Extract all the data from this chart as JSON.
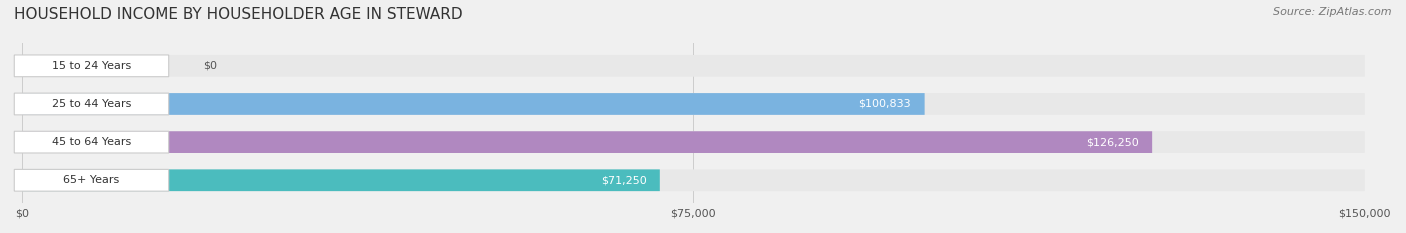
{
  "title": "HOUSEHOLD INCOME BY HOUSEHOLDER AGE IN STEWARD",
  "source": "Source: ZipAtlas.com",
  "categories": [
    "15 to 24 Years",
    "25 to 44 Years",
    "45 to 64 Years",
    "65+ Years"
  ],
  "values": [
    0,
    100833,
    126250,
    71250
  ],
  "bar_colors": [
    "#f4a0a0",
    "#7ab3e0",
    "#b088c0",
    "#4bbcbe"
  ],
  "background_color": "#f0f0f0",
  "bar_bg_color": "#e8e8e8",
  "label_bg_color": "#ffffff",
  "xlim": [
    0,
    150000
  ],
  "xticks": [
    0,
    75000,
    150000
  ],
  "xtick_labels": [
    "$0",
    "$75,000",
    "$150,000"
  ],
  "value_label_color": "#ffffff",
  "value_label_color_zero": "#555555",
  "title_fontsize": 11,
  "source_fontsize": 8,
  "tick_fontsize": 8,
  "bar_label_fontsize": 8,
  "value_fontsize": 8,
  "bar_height": 0.55,
  "fig_width": 14.06,
  "fig_height": 2.33
}
